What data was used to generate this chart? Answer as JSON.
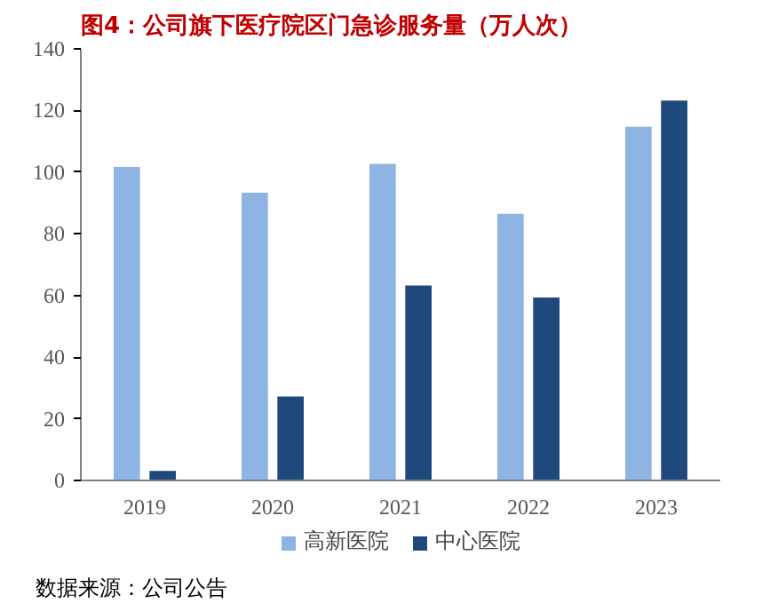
{
  "chart_data": {
    "type": "bar",
    "title": "图4：公司旗下医疗院区门急诊服务量（万人次）",
    "categories": [
      "2019",
      "2020",
      "2021",
      "2022",
      "2023"
    ],
    "series": [
      {
        "name": "高新医院",
        "color": "#8eb4e3",
        "values": [
          102,
          93.6,
          103,
          86.8,
          115
        ]
      },
      {
        "name": "中心医院",
        "color": "#1f497d",
        "values": [
          3.4,
          27.5,
          63.5,
          59.6,
          123.5
        ]
      }
    ],
    "ylim": [
      0,
      140
    ],
    "yticks": [
      0,
      20,
      40,
      60,
      80,
      100,
      120,
      140
    ],
    "grid": false,
    "legend": "bottom",
    "annotations": [
      "数据来源：公司公告"
    ]
  }
}
